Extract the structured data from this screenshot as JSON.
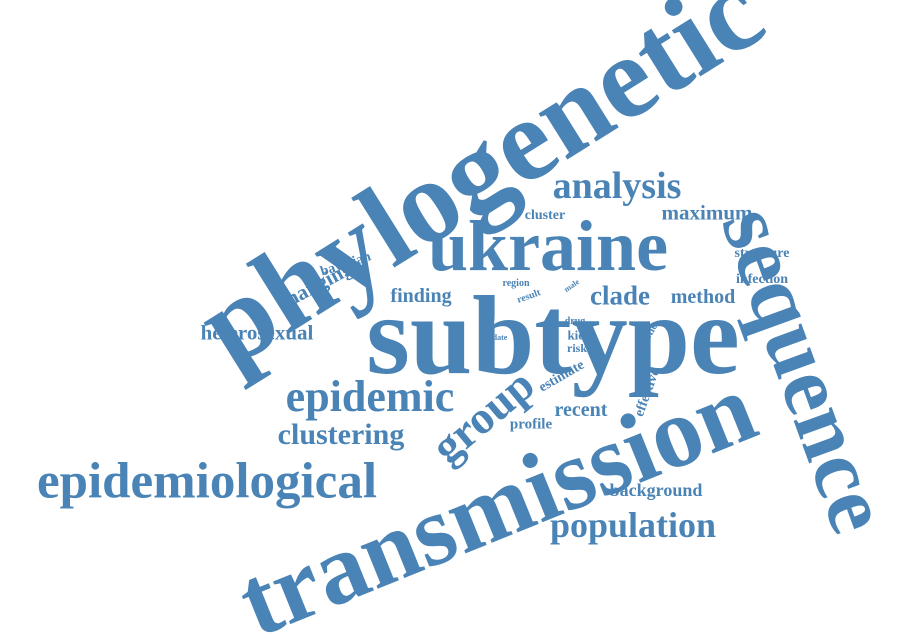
{
  "words": {
    "phylogenetic": "phylogenetic",
    "subtype": "subtype",
    "transmission": "transmission",
    "sequence": "sequence",
    "ukraine": "ukraine",
    "epidemiological": "epidemiological",
    "epidemic": "epidemic",
    "group": "group",
    "analysis": "analysis",
    "population": "population",
    "clustering": "clustering",
    "maximum": "maximum",
    "clade": "clade",
    "method": "method",
    "heterosexual": "heterosexual",
    "finding": "finding",
    "changing": "changing",
    "bayesian": "bayesian",
    "cluster": "cluster",
    "structure": "structure",
    "infection": "infection",
    "background": "background",
    "recent": "recent",
    "profile": "profile",
    "estimate": "estimate",
    "effective": "effective",
    "genetic": "genetic",
    "region": "region",
    "result": "result",
    "male": "male",
    "drug": "drug",
    "kiev": "kiev",
    "risk": "risk",
    "date": "date"
  }
}
